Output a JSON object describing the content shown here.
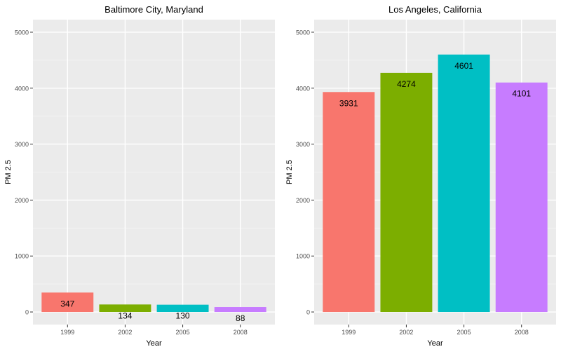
{
  "chart_data": [
    {
      "type": "bar",
      "title": "Baltimore City, Maryland",
      "xlabel": "Year",
      "ylabel": "PM 2.5",
      "categories": [
        "1999",
        "2002",
        "2005",
        "2008"
      ],
      "values": [
        347,
        134,
        130,
        88
      ],
      "data_labels": [
        "347",
        "134",
        "130",
        "88"
      ],
      "ylim": [
        0,
        5000
      ],
      "yticks": [
        0,
        1000,
        2000,
        3000,
        4000,
        5000
      ],
      "colors": [
        "#F8766D",
        "#7CAE00",
        "#00BFC4",
        "#C77CFF"
      ],
      "grid": true,
      "legend": "none"
    },
    {
      "type": "bar",
      "title": "Los Angeles, California",
      "xlabel": "Year",
      "ylabel": "PM 2.5",
      "categories": [
        "1999",
        "2002",
        "2005",
        "2008"
      ],
      "values": [
        3931,
        4274,
        4601,
        4101
      ],
      "data_labels": [
        "3931",
        "4274",
        "4601",
        "4101"
      ],
      "ylim": [
        0,
        5000
      ],
      "yticks": [
        0,
        1000,
        2000,
        3000,
        4000,
        5000
      ],
      "colors": [
        "#F8766D",
        "#7CAE00",
        "#00BFC4",
        "#C77CFF"
      ],
      "grid": true,
      "legend": "none"
    }
  ]
}
